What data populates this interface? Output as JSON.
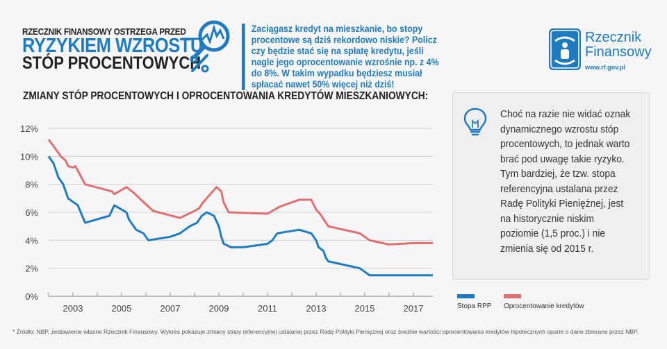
{
  "header": {
    "supertitle": "RZECZNIK FINANSOWY OSTRZEGA PRZED",
    "title": "RYZYKIEM WZROSTU",
    "subtitle": "STÓP PROCENTOWYCH",
    "icon": "magnifier-chart-percent-icon"
  },
  "intro": "Zaciągasz kredyt na mieszkanie, bo stopy procentowe są dziś rekordowo niskie? Policz czy będzie stać się na spłatę kredytu, jeśli nagle jego oprocentowanie wzrośnie np. z 4% do 8%.  W takim wypadku będziesz musiał spłacać nawet 50% więcej niż dziś!",
  "logo": {
    "name_line1": "Rzecznik",
    "name_line2": "Finansowy",
    "url": "www.rf.gov.pl",
    "icon": "hands-protecting-person-icon"
  },
  "info": {
    "icon": "lightbulb-icon",
    "text": "Choć na razie nie widać oznak dynamicznego wzrostu stóp procentowych, to jednak warto brać pod uwagę takie ryzyko. Tym bardziej, że tzw. stopa referencyjna ustalana przez Radę Polityki Pieniężnej, jest na historycznie niskim poziomie (1,5 proc.) i nie zmienia się od 2015 r."
  },
  "footnote": "* Źródło: NBP, zestawienie własne Rzecznik Finansowy. Wykres pokazuje zmiany stopy referencyjnej ustalanej przez Radę Polityki Pieniężnej oraz średnie wartości oprocentowania kredytów hipotecznych oparte o dane zbierane przez NBP.",
  "colors": {
    "brand": "#1f7bbf",
    "rpp": "#1f7bbf",
    "loans": "#e07070"
  },
  "chart_data": {
    "type": "line",
    "title": "ZMIANY STÓP PROCENTOWYCH I OPROCENTOWANIA KREDYTÓW MIESZKANIOWYCH:",
    "xlabel": "",
    "ylabel": "",
    "xlim": [
      2002,
      2017.8
    ],
    "ylim": [
      0,
      12
    ],
    "yticks": [
      "0%",
      "2%",
      "4%",
      "6%",
      "8%",
      "10%",
      "12%"
    ],
    "ytick_values": [
      0,
      2,
      4,
      6,
      8,
      10,
      12
    ],
    "xticks": [
      "2003",
      "2005",
      "2007",
      "2009",
      "2011",
      "2013",
      "2015",
      "2017"
    ],
    "xtick_values": [
      2003,
      2005,
      2007,
      2009,
      2011,
      2013,
      2015,
      2017
    ],
    "grid": true,
    "legend_position": "bottom-right",
    "series": [
      {
        "name": "Stopa RPP",
        "color": "#1f7bbf",
        "points": [
          [
            2002.0,
            10.0
          ],
          [
            2002.2,
            9.5
          ],
          [
            2002.4,
            8.5
          ],
          [
            2002.6,
            8.0
          ],
          [
            2002.8,
            7.0
          ],
          [
            2003.0,
            6.75
          ],
          [
            2003.2,
            6.5
          ],
          [
            2003.5,
            5.25
          ],
          [
            2004.5,
            5.75
          ],
          [
            2004.7,
            6.5
          ],
          [
            2005.2,
            6.0
          ],
          [
            2005.3,
            5.5
          ],
          [
            2005.6,
            4.75
          ],
          [
            2005.9,
            4.5
          ],
          [
            2006.1,
            4.0
          ],
          [
            2007.0,
            4.25
          ],
          [
            2007.4,
            4.5
          ],
          [
            2007.8,
            5.0
          ],
          [
            2008.1,
            5.25
          ],
          [
            2008.3,
            5.75
          ],
          [
            2008.5,
            6.0
          ],
          [
            2008.8,
            5.75
          ],
          [
            2009.0,
            5.0
          ],
          [
            2009.1,
            4.25
          ],
          [
            2009.2,
            3.75
          ],
          [
            2009.5,
            3.5
          ],
          [
            2010.0,
            3.5
          ],
          [
            2011.0,
            3.75
          ],
          [
            2011.2,
            4.0
          ],
          [
            2011.4,
            4.5
          ],
          [
            2012.3,
            4.75
          ],
          [
            2012.8,
            4.5
          ],
          [
            2013.0,
            4.0
          ],
          [
            2013.1,
            3.5
          ],
          [
            2013.3,
            3.25
          ],
          [
            2013.4,
            2.75
          ],
          [
            2013.5,
            2.5
          ],
          [
            2014.8,
            2.0
          ],
          [
            2015.2,
            1.5
          ],
          [
            2017.8,
            1.5
          ]
        ]
      },
      {
        "name": "Oprocentowanie kredytów",
        "color": "#e07070",
        "points": [
          [
            2002.0,
            11.2
          ],
          [
            2002.3,
            10.5
          ],
          [
            2002.5,
            10.0
          ],
          [
            2002.7,
            9.7
          ],
          [
            2002.8,
            9.3
          ],
          [
            2003.0,
            9.2
          ],
          [
            2003.1,
            9.3
          ],
          [
            2003.5,
            8.0
          ],
          [
            2004.6,
            7.5
          ],
          [
            2004.7,
            7.3
          ],
          [
            2005.2,
            7.8
          ],
          [
            2005.5,
            7.4
          ],
          [
            2005.8,
            6.9
          ],
          [
            2006.3,
            6.1
          ],
          [
            2007.4,
            5.6
          ],
          [
            2008.0,
            6.1
          ],
          [
            2008.2,
            6.3
          ],
          [
            2008.3,
            6.6
          ],
          [
            2008.9,
            7.8
          ],
          [
            2009.1,
            7.5
          ],
          [
            2009.2,
            6.7
          ],
          [
            2009.4,
            6.0
          ],
          [
            2011.0,
            5.9
          ],
          [
            2011.5,
            6.4
          ],
          [
            2012.3,
            6.9
          ],
          [
            2012.8,
            6.9
          ],
          [
            2013.0,
            6.2
          ],
          [
            2013.2,
            5.8
          ],
          [
            2013.5,
            5.0
          ],
          [
            2014.8,
            4.5
          ],
          [
            2015.2,
            4.0
          ],
          [
            2016.0,
            3.7
          ],
          [
            2017.0,
            3.8
          ],
          [
            2017.8,
            3.8
          ]
        ]
      }
    ]
  }
}
